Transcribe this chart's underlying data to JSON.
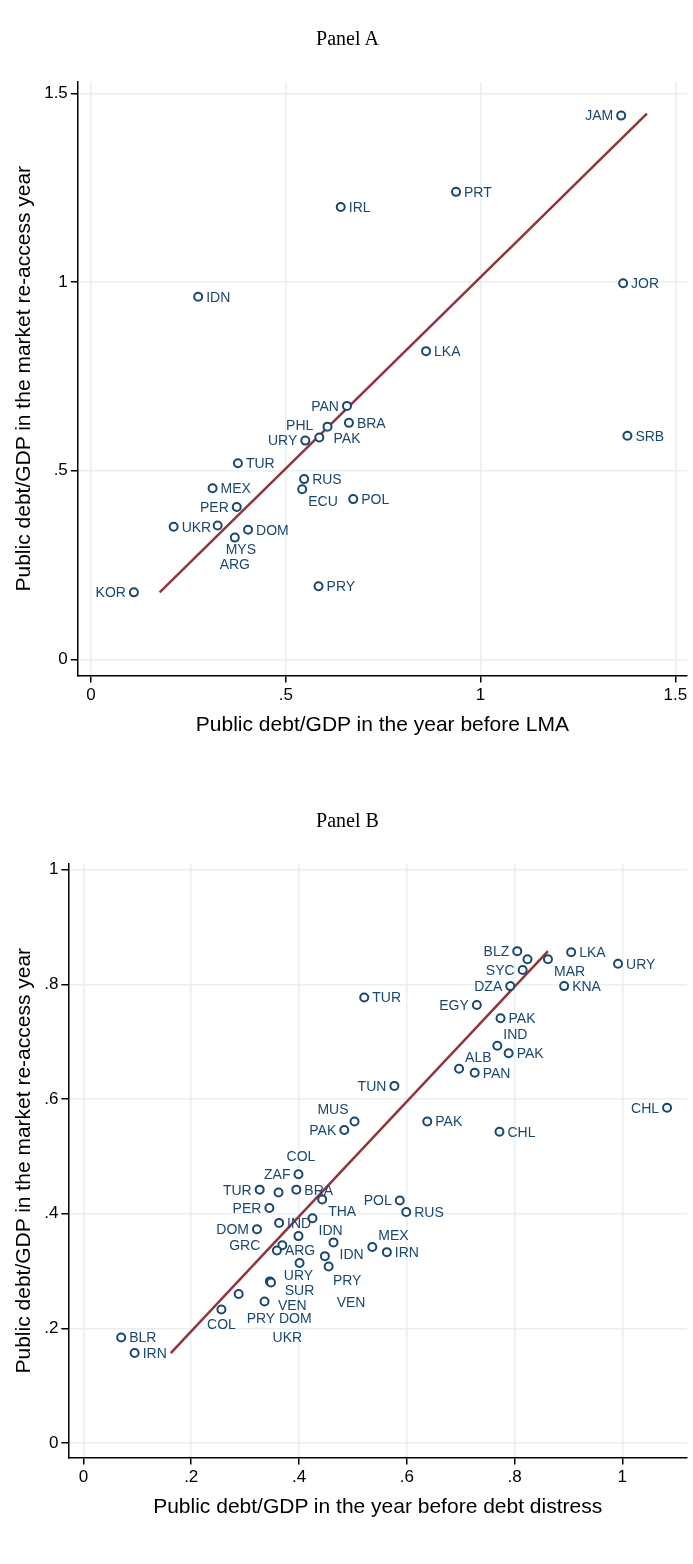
{
  "chart_data": [
    {
      "type": "scatter",
      "title": "Panel A",
      "xlabel": "Public debt/GDP in the year before LMA",
      "ylabel": "Public debt/GDP in the market re-access year",
      "xlim": [
        -0.034,
        1.53
      ],
      "ylim": [
        -0.042,
        1.53
      ],
      "xticks": [
        0,
        {
          "value": 0.5,
          "label": ".5"
        },
        1,
        1.5
      ],
      "yticks": [
        0,
        {
          "value": 0.5,
          "label": ".5"
        },
        1,
        1.5
      ],
      "grid": true,
      "legend": false,
      "marker": "circle",
      "series": [
        {
          "color": "#1a476f",
          "x": [
            1.361,
            0.937,
            0.641,
            0.275,
            1.366,
            0.86,
            0.657,
            0.662,
            0.607,
            0.586,
            0.55,
            1.377,
            0.377,
            0.547,
            0.542,
            0.312,
            0.673,
            0.374,
            0.212,
            0.325,
            0.403,
            0.369,
            0.11,
            0.584
          ],
          "values": [
            1.441,
            1.239,
            1.199,
            0.961,
            0.997,
            0.817,
            0.672,
            0.627,
            0.617,
            0.588,
            0.58,
            0.593,
            0.52,
            0.478,
            0.451,
            0.454,
            0.425,
            0.404,
            0.352,
            0.355,
            0.344,
            0.323,
            0.178,
            0.194
          ]
        },
        {
          "type": "line",
          "color": "#90353b",
          "marker": "none",
          "x": [
            0.176,
            1.427
          ],
          "values": [
            0.178,
            1.446
          ]
        }
      ],
      "annotations": [
        {
          "text": "JAM",
          "x": 1.361,
          "y": 1.441
        },
        {
          "text": "PRT",
          "x": 0.937,
          "y": 1.239
        },
        {
          "text": "IRL",
          "x": 0.641,
          "y": 1.199
        },
        {
          "text": "IDN",
          "x": 0.275,
          "y": 0.961
        },
        {
          "text": "JOR",
          "x": 1.366,
          "y": 0.997
        },
        {
          "text": "LKA",
          "x": 0.86,
          "y": 0.817
        },
        {
          "text": "PAN",
          "x": 0.657,
          "y": 0.672
        },
        {
          "text": "BRA",
          "x": 0.662,
          "y": 0.627
        },
        {
          "text": "PAK",
          "x": 0.607,
          "y": 0.617
        },
        {
          "text": "PHL",
          "x": 0.586,
          "y": 0.588
        },
        {
          "text": "URY",
          "x": 0.55,
          "y": 0.58
        },
        {
          "text": "SRB",
          "x": 1.377,
          "y": 0.593
        },
        {
          "text": "TUR",
          "x": 0.377,
          "y": 0.52
        },
        {
          "text": "RUS",
          "x": 0.547,
          "y": 0.478
        },
        {
          "text": "ECU",
          "x": 0.542,
          "y": 0.451
        },
        {
          "text": "MEX",
          "x": 0.312,
          "y": 0.454
        },
        {
          "text": "POL",
          "x": 0.673,
          "y": 0.425
        },
        {
          "text": "PER",
          "x": 0.374,
          "y": 0.404
        },
        {
          "text": "UKR",
          "x": 0.212,
          "y": 0.352
        },
        {
          "text": "MYS",
          "x": 0.325,
          "y": 0.355
        },
        {
          "text": "DOM",
          "x": 0.403,
          "y": 0.344
        },
        {
          "text": "ARG",
          "x": 0.369,
          "y": 0.323
        },
        {
          "text": "KOR",
          "x": 0.11,
          "y": 0.178
        },
        {
          "text": "PRY",
          "x": 0.584,
          "y": 0.194
        }
      ]
    },
    {
      "type": "scatter",
      "title": "Panel B",
      "xlabel": "Public debt/GDP in the year before debt distress",
      "ylabel": "Public debt/GDP in the market re-access year",
      "xlim": [
        -0.028,
        1.12
      ],
      "ylim": [
        -0.025,
        1.01
      ],
      "xticks": [
        0,
        {
          "value": 0.2,
          "label": ".2"
        },
        {
          "value": 0.4,
          "label": ".4"
        },
        {
          "value": 0.6,
          "label": ".6"
        },
        {
          "value": 0.8,
          "label": ".8"
        },
        1
      ],
      "yticks": [
        0,
        {
          "value": 0.2,
          "label": ".2"
        },
        {
          "value": 0.4,
          "label": ".4"
        },
        {
          "value": 0.6,
          "label": ".6"
        },
        {
          "value": 0.8,
          "label": ".8"
        },
        1
      ],
      "grid": true,
      "legend": false,
      "marker": "circle",
      "series": [
        {
          "color": "#1a476f",
          "x": [
            0.805,
            0.824,
            0.862,
            0.905,
            0.992,
            0.815,
            0.792,
            0.892,
            0.521,
            0.73,
            0.774,
            0.768,
            0.789,
            0.697,
            0.726,
            0.577,
            1.083,
            0.503,
            0.484,
            0.638,
            0.772,
            0.399,
            0.327,
            0.362,
            0.395,
            0.443,
            0.587,
            0.599,
            0.345,
            0.425,
            0.363,
            0.322,
            0.399,
            0.464,
            0.536,
            0.563,
            0.369,
            0.359,
            0.448,
            0.401,
            0.455,
            0.346,
            0.348,
            0.288,
            0.336,
            0.256,
            0.07,
            0.095
          ],
          "values": [
            0.858,
            0.844,
            0.844,
            0.856,
            0.836,
            0.825,
            0.797,
            0.797,
            0.777,
            0.764,
            0.741,
            0.693,
            0.68,
            0.653,
            0.646,
            0.623,
            0.585,
            0.561,
            0.546,
            0.561,
            0.543,
            0.469,
            0.442,
            0.437,
            0.442,
            0.425,
            0.423,
            0.403,
            0.41,
            0.392,
            0.384,
            0.373,
            0.361,
            0.35,
            0.342,
            0.333,
            0.345,
            0.336,
            0.326,
            0.314,
            0.308,
            0.282,
            0.28,
            0.26,
            0.247,
            0.233,
            0.184,
            0.157
          ]
        },
        {
          "type": "line",
          "color": "#90353b",
          "marker": "none",
          "x": [
            0.162,
            0.862
          ],
          "values": [
            0.157,
            0.858
          ]
        }
      ],
      "annotations": [
        {
          "text": "BLZ",
          "x": 0.805,
          "y": 0.858
        },
        {
          "text": "MAR",
          "x": 0.862,
          "y": 0.844
        },
        {
          "text": "LKA",
          "x": 0.905,
          "y": 0.856
        },
        {
          "text": "URY",
          "x": 0.992,
          "y": 0.836
        },
        {
          "text": "SYC",
          "x": 0.815,
          "y": 0.825
        },
        {
          "text": "DZA",
          "x": 0.792,
          "y": 0.797
        },
        {
          "text": "KNA",
          "x": 0.892,
          "y": 0.797
        },
        {
          "text": "TUR",
          "x": 0.521,
          "y": 0.777
        },
        {
          "text": "EGY",
          "x": 0.73,
          "y": 0.764
        },
        {
          "text": "PAK",
          "x": 0.774,
          "y": 0.741
        },
        {
          "text": "IND",
          "x": 0.768,
          "y": 0.693
        },
        {
          "text": "PAK",
          "x": 0.789,
          "y": 0.68
        },
        {
          "text": "ALB",
          "x": 0.697,
          "y": 0.653
        },
        {
          "text": "PAN",
          "x": 0.726,
          "y": 0.646
        },
        {
          "text": "TUN",
          "x": 0.577,
          "y": 0.623
        },
        {
          "text": "CHL",
          "x": 1.083,
          "y": 0.585
        },
        {
          "text": "MUS",
          "x": 0.503,
          "y": 0.561
        },
        {
          "text": "PAK",
          "x": 0.484,
          "y": 0.546
        },
        {
          "text": "PAK",
          "x": 0.638,
          "y": 0.561
        },
        {
          "text": "CHL",
          "x": 0.772,
          "y": 0.543
        },
        {
          "text": "ZAF",
          "x": 0.399,
          "y": 0.469
        },
        {
          "text": "TUR",
          "x": 0.327,
          "y": 0.442
        },
        {
          "text": "COL",
          "x": 0.362,
          "y": 0.437
        },
        {
          "text": "BRA",
          "x": 0.395,
          "y": 0.442
        },
        {
          "text": "THA",
          "x": 0.443,
          "y": 0.425
        },
        {
          "text": "POL",
          "x": 0.587,
          "y": 0.423
        },
        {
          "text": "RUS",
          "x": 0.599,
          "y": 0.403
        },
        {
          "text": "PER",
          "x": 0.345,
          "y": 0.41
        },
        {
          "text": "IDN",
          "x": 0.425,
          "y": 0.392
        },
        {
          "text": "IND",
          "x": 0.363,
          "y": 0.384
        },
        {
          "text": "DOM",
          "x": 0.322,
          "y": 0.373
        },
        {
          "text": "URY",
          "x": 0.399,
          "y": 0.361
        },
        {
          "text": "IDN",
          "x": 0.464,
          "y": 0.35
        },
        {
          "text": "MEX",
          "x": 0.536,
          "y": 0.342
        },
        {
          "text": "IRN",
          "x": 0.563,
          "y": 0.333
        },
        {
          "text": "GRC",
          "x": 0.369,
          "y": 0.345
        },
        {
          "text": "ARG",
          "x": 0.359,
          "y": 0.336
        },
        {
          "text": "PRY",
          "x": 0.448,
          "y": 0.326
        },
        {
          "text": "SUR",
          "x": 0.401,
          "y": 0.314
        },
        {
          "text": "VEN",
          "x": 0.455,
          "y": 0.308
        },
        {
          "text": "VEN",
          "x": 0.346,
          "y": 0.282
        },
        {
          "text": "DOM",
          "x": 0.348,
          "y": 0.28
        },
        {
          "text": "PRY",
          "x": 0.288,
          "y": 0.26
        },
        {
          "text": "UKR",
          "x": 0.336,
          "y": 0.247
        },
        {
          "text": "COL",
          "x": 0.256,
          "y": 0.233
        },
        {
          "text": "BLR",
          "x": 0.07,
          "y": 0.184
        },
        {
          "text": "IRN",
          "x": 0.095,
          "y": 0.157
        }
      ]
    }
  ]
}
